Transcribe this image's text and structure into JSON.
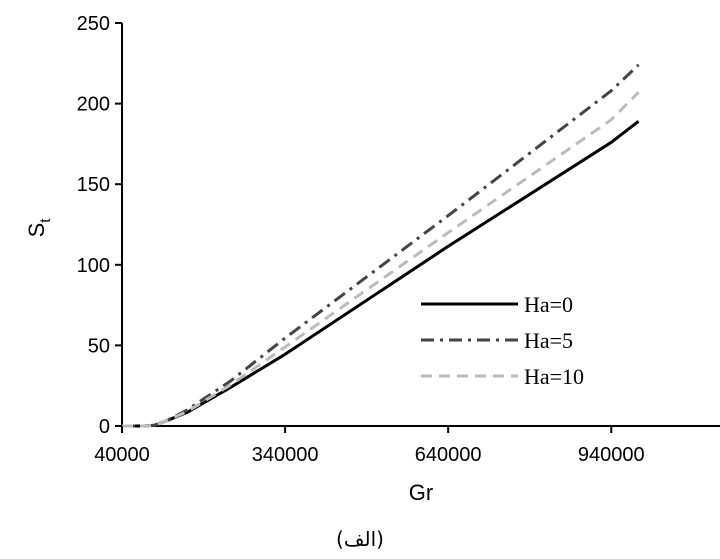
{
  "chart_data": {
    "type": "line",
    "xlabel": "Gr",
    "ylabel": "S",
    "ylabel_sub": "t",
    "xlim": [
      40000,
      1140000
    ],
    "ylim": [
      0,
      250
    ],
    "x_ticks": [
      40000,
      340000,
      640000,
      940000
    ],
    "y_ticks": [
      0,
      50,
      100,
      150,
      200,
      250
    ],
    "grid": false,
    "legend": "center-right",
    "series": [
      {
        "name": "Ha=0",
        "color": "#000000",
        "dash": "solid",
        "x": [
          40000,
          80000,
          100000,
          120000,
          160000,
          240000,
          340000,
          640000,
          940000,
          990000
        ],
        "y": [
          0,
          0,
          0.5,
          3,
          8.5,
          24,
          44.5,
          111.5,
          176,
          189
        ]
      },
      {
        "name": "Ha=5",
        "color": "#444444",
        "dash": "dashdot",
        "x": [
          40000,
          80000,
          100000,
          120000,
          160000,
          240000,
          340000,
          640000,
          940000,
          990000
        ],
        "y": [
          0,
          0,
          0.5,
          3,
          10,
          28,
          54.5,
          130.5,
          208,
          224
        ]
      },
      {
        "name": "Ha=10",
        "color": "#bbbbbb",
        "dash": "dashed",
        "x": [
          40000,
          80000,
          100000,
          120000,
          160000,
          240000,
          340000,
          640000,
          940000,
          990000
        ],
        "y": [
          0,
          0,
          0.5,
          3,
          9,
          25.5,
          49,
          120,
          190,
          207
        ]
      }
    ]
  },
  "caption": "(الف)"
}
